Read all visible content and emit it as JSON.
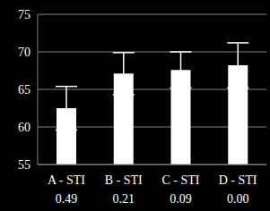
{
  "chart_data": {
    "type": "bar",
    "categories": [
      "A - STI\n0.49",
      "B - STI\n0.21",
      "C - STI\n0.09",
      "D - STI\n0.00"
    ],
    "values": [
      62.5,
      67.1,
      67.6,
      68.2
    ],
    "errors": [
      2.9,
      2.8,
      2.4,
      3.0
    ],
    "color": "#ffffff",
    "ylim": [
      55,
      75
    ],
    "yticks": [
      55,
      60,
      65,
      70,
      75
    ],
    "grid": true
  }
}
